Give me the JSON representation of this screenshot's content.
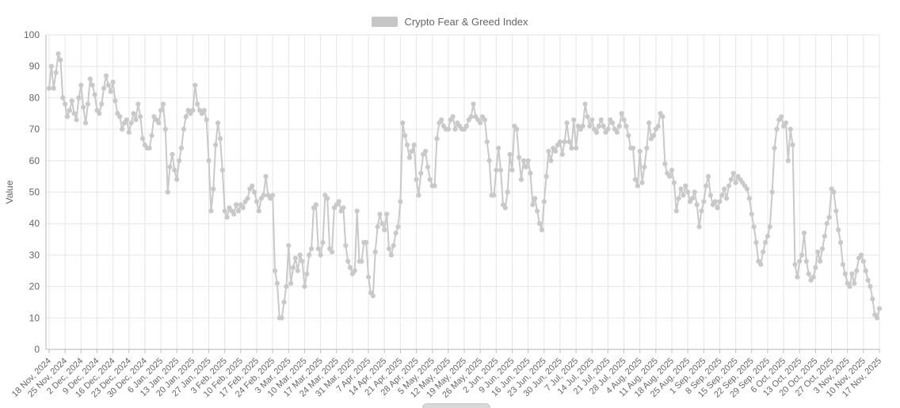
{
  "legend": {
    "label": "Crypto Fear & Greed Index"
  },
  "colors": {
    "series": "#c9c9c9",
    "legend_swatch": "#c6c6c6",
    "grid": "#e6e6e6",
    "axis_line": "#b6b6b6",
    "tick": "#c0c0c0",
    "text": "#666666"
  },
  "chart_data": {
    "type": "line",
    "title": "Crypto Fear & Greed Index",
    "xlabel": "",
    "ylabel": "Value",
    "ylim": [
      0,
      100
    ],
    "y_tick_step": 10,
    "grid": true,
    "legend_position": "top-center",
    "markers": true,
    "x_start": "18 Nov, 2024",
    "x_end": "17 Nov, 2025",
    "x_tick_every_days": 7,
    "x_tick_labels": [
      "18 Nov, 2024",
      "25 Nov, 2024",
      "2 Dec, 2024",
      "9 Dec, 2024",
      "16 Dec, 2024",
      "23 Dec, 2024",
      "30 Dec, 2024",
      "6 Jan, 2025",
      "13 Jan, 2025",
      "20 Jan, 2025",
      "27 Jan, 2025",
      "3 Feb, 2025",
      "10 Feb, 2025",
      "17 Feb, 2025",
      "24 Feb, 2025",
      "3 Mar, 2025",
      "10 Mar, 2025",
      "17 Mar, 2025",
      "24 Mar, 2025",
      "31 Mar, 2025",
      "7 Apr, 2025",
      "14 Apr, 2025",
      "21 Apr, 2025",
      "28 Apr, 2025",
      "5 May, 2025",
      "12 May, 2025",
      "19 May, 2025",
      "26 May, 2025",
      "2 Jun, 2025",
      "9 Jun, 2025",
      "16 Jun, 2025",
      "23 Jun, 2025",
      "30 Jun, 2025",
      "7 Jul, 2025",
      "14 Jul, 2025",
      "21 Jul, 2025",
      "28 Jul, 2025",
      "4 Aug, 2025",
      "11 Aug, 2025",
      "18 Aug, 2025",
      "25 Aug, 2025",
      "1 Sep, 2025",
      "8 Sep, 2025",
      "15 Sep, 2025",
      "22 Sep, 2025",
      "29 Sep, 2025",
      "6 Oct, 2025",
      "13 Oct, 2025",
      "20 Oct, 2025",
      "27 Oct, 2025",
      "3 Nov, 2025",
      "10 Nov, 2025",
      "17 Nov, 2025"
    ],
    "series": [
      {
        "name": "Crypto Fear & Greed Index",
        "values": [
          83,
          90,
          83,
          88,
          94,
          92,
          80,
          78,
          74,
          76,
          79,
          75,
          73,
          80,
          84,
          77,
          72,
          78,
          86,
          84,
          81,
          76,
          75,
          78,
          83,
          87,
          84,
          82,
          85,
          79,
          75,
          74,
          70,
          72,
          73,
          69,
          72,
          75,
          73,
          78,
          74,
          67,
          65,
          64,
          64,
          68,
          74,
          73,
          72,
          76,
          78,
          70,
          50,
          58,
          62,
          57,
          54,
          60,
          64,
          70,
          74,
          76,
          75,
          76,
          84,
          78,
          76,
          75,
          76,
          73,
          60,
          44,
          51,
          65,
          72,
          67,
          57,
          44,
          42,
          45,
          44,
          43,
          46,
          44,
          46,
          45,
          47,
          48,
          51,
          52,
          50,
          47,
          44,
          48,
          49,
          55,
          49,
          48,
          49,
          25,
          21,
          10,
          10,
          15,
          20,
          33,
          21,
          26,
          29,
          25,
          30,
          28,
          20,
          24,
          30,
          32,
          45,
          46,
          32,
          30,
          34,
          49,
          48,
          32,
          31,
          45,
          46,
          47,
          44,
          45,
          33,
          28,
          26,
          24,
          25,
          44,
          28,
          28,
          34,
          34,
          23,
          18,
          17,
          31,
          39,
          43,
          40,
          38,
          43,
          32,
          30,
          33,
          37,
          39,
          47,
          72,
          68,
          65,
          61,
          63,
          65,
          54,
          49,
          56,
          62,
          63,
          58,
          54,
          52,
          52,
          67,
          72,
          73,
          71,
          70,
          70,
          73,
          74,
          70,
          72,
          71,
          70,
          70,
          71,
          73,
          74,
          78,
          74,
          73,
          72,
          74,
          73,
          66,
          60,
          49,
          49,
          57,
          64,
          57,
          46,
          45,
          50,
          62,
          57,
          71,
          70,
          61,
          54,
          60,
          58,
          60,
          56,
          46,
          48,
          44,
          40,
          38,
          47,
          55,
          63,
          60,
          64,
          63,
          65,
          66,
          62,
          66,
          72,
          66,
          64,
          73,
          64,
          71,
          70,
          71,
          78,
          74,
          71,
          73,
          70,
          69,
          71,
          73,
          71,
          69,
          70,
          73,
          72,
          70,
          69,
          71,
          75,
          73,
          71,
          68,
          64,
          64,
          54,
          52,
          63,
          53,
          58,
          64,
          72,
          67,
          68,
          70,
          71,
          75,
          74,
          59,
          56,
          55,
          57,
          53,
          44,
          48,
          51,
          49,
          52,
          50,
          47,
          48,
          50,
          46,
          39,
          44,
          47,
          52,
          55,
          49,
          46,
          47,
          45,
          47,
          49,
          51,
          48,
          52,
          54,
          56,
          53,
          55,
          54,
          53,
          52,
          51,
          48,
          43,
          39,
          34,
          28,
          27,
          31,
          34,
          36,
          39,
          50,
          64,
          70,
          73,
          74,
          71,
          72,
          60,
          70,
          65,
          27,
          23,
          28,
          30,
          37,
          28,
          24,
          22,
          23,
          26,
          31,
          28,
          32,
          36,
          40,
          42,
          51,
          50,
          44,
          38,
          34,
          27,
          24,
          21,
          20,
          24,
          21,
          25,
          29,
          30,
          28,
          25,
          22,
          20,
          16,
          11,
          10,
          13
        ]
      }
    ]
  }
}
